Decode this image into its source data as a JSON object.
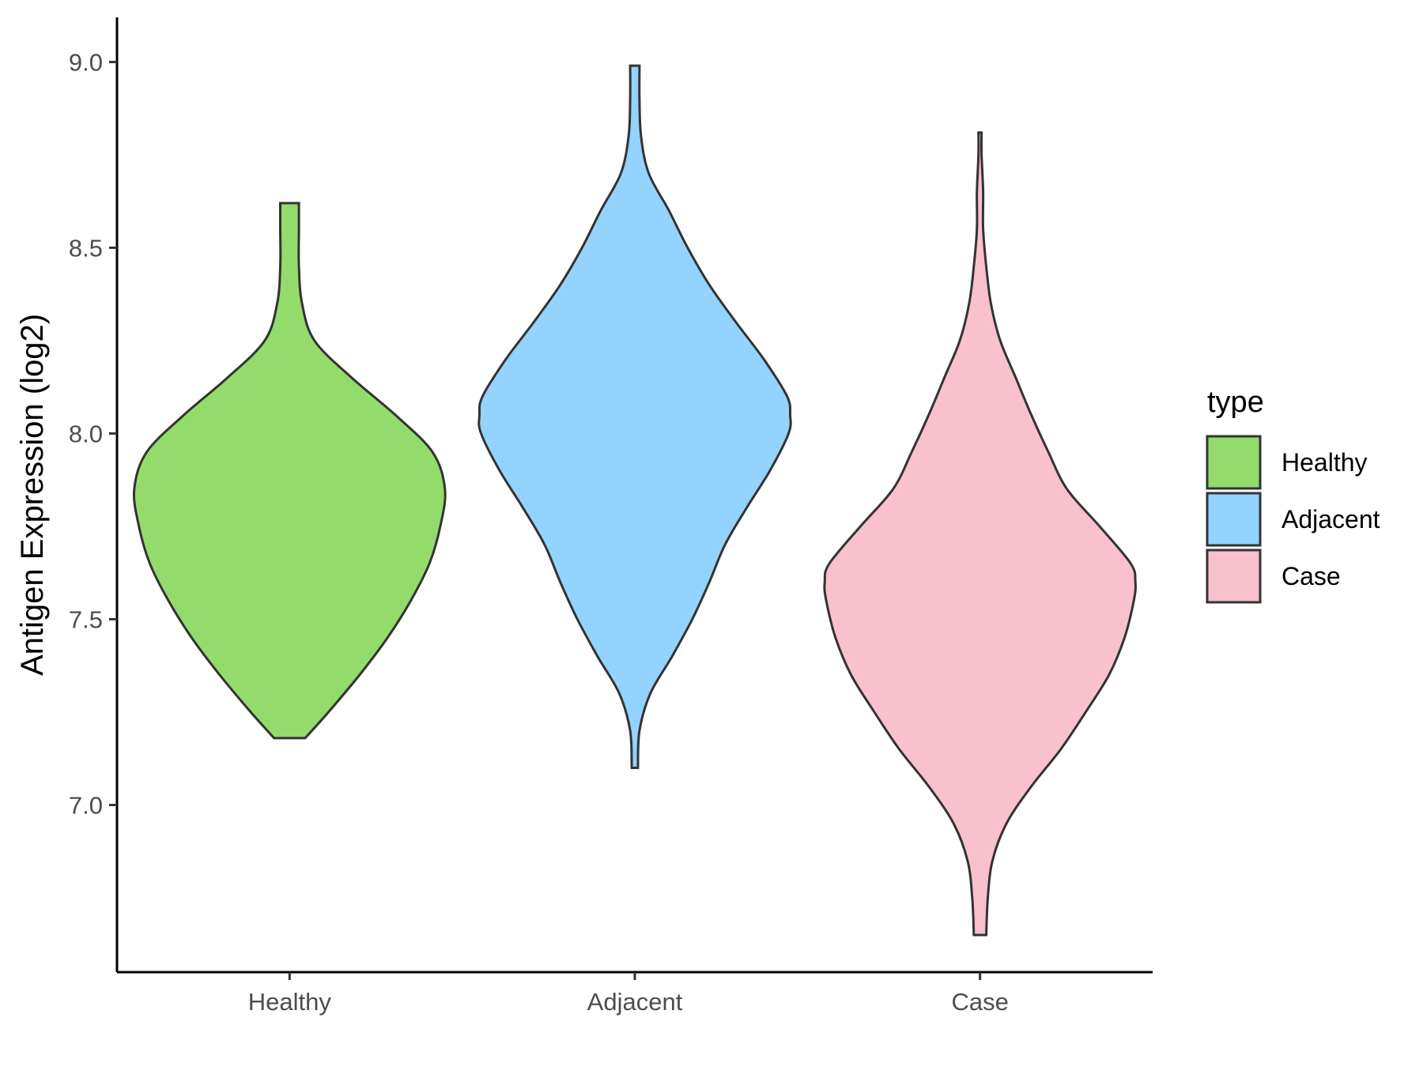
{
  "chart_data": {
    "type": "violin",
    "title": "",
    "xlabel": "",
    "ylabel": "Antigen Expression (log2)",
    "ylim": [
      6.55,
      9.12
    ],
    "yticks": [
      7.0,
      7.5,
      8.0,
      8.5,
      9.0
    ],
    "ytick_labels": [
      "7.0",
      "7.5",
      "8.0",
      "8.5",
      "9.0"
    ],
    "categories": [
      "Healthy",
      "Adjacent",
      "Case"
    ],
    "grid": false,
    "legend": {
      "title": "type",
      "placement": "right",
      "entries": [
        "Healthy",
        "Adjacent",
        "Case"
      ]
    },
    "series": [
      {
        "category": "Healthy",
        "color": "#93dc6b",
        "min": 7.18,
        "max": 8.62,
        "density": [
          [
            7.18,
            0.1
          ],
          [
            7.25,
            0.25
          ],
          [
            7.35,
            0.45
          ],
          [
            7.45,
            0.63
          ],
          [
            7.55,
            0.78
          ],
          [
            7.65,
            0.9
          ],
          [
            7.75,
            0.97
          ],
          [
            7.85,
            1.0
          ],
          [
            7.95,
            0.92
          ],
          [
            8.05,
            0.68
          ],
          [
            8.15,
            0.4
          ],
          [
            8.25,
            0.16
          ],
          [
            8.35,
            0.08
          ],
          [
            8.45,
            0.06
          ],
          [
            8.55,
            0.06
          ],
          [
            8.62,
            0.06
          ]
        ]
      },
      {
        "category": "Adjacent",
        "color": "#93d3fe",
        "min": 7.1,
        "max": 8.99,
        "density": [
          [
            7.1,
            0.02
          ],
          [
            7.2,
            0.03
          ],
          [
            7.3,
            0.1
          ],
          [
            7.4,
            0.24
          ],
          [
            7.5,
            0.37
          ],
          [
            7.6,
            0.48
          ],
          [
            7.7,
            0.58
          ],
          [
            7.8,
            0.72
          ],
          [
            7.9,
            0.87
          ],
          [
            8.0,
            0.99
          ],
          [
            8.05,
            1.0
          ],
          [
            8.1,
            0.98
          ],
          [
            8.2,
            0.83
          ],
          [
            8.3,
            0.65
          ],
          [
            8.4,
            0.48
          ],
          [
            8.5,
            0.34
          ],
          [
            8.6,
            0.22
          ],
          [
            8.7,
            0.09
          ],
          [
            8.8,
            0.04
          ],
          [
            8.9,
            0.03
          ],
          [
            8.99,
            0.03
          ]
        ]
      },
      {
        "category": "Case",
        "color": "#f8c1cd",
        "min": 6.65,
        "max": 8.81,
        "density": [
          [
            6.65,
            0.04
          ],
          [
            6.75,
            0.05
          ],
          [
            6.85,
            0.08
          ],
          [
            6.95,
            0.17
          ],
          [
            7.05,
            0.33
          ],
          [
            7.15,
            0.52
          ],
          [
            7.25,
            0.68
          ],
          [
            7.35,
            0.83
          ],
          [
            7.45,
            0.93
          ],
          [
            7.55,
            0.99
          ],
          [
            7.6,
            1.0
          ],
          [
            7.65,
            0.97
          ],
          [
            7.75,
            0.77
          ],
          [
            7.85,
            0.56
          ],
          [
            7.95,
            0.44
          ],
          [
            8.05,
            0.33
          ],
          [
            8.15,
            0.23
          ],
          [
            8.25,
            0.13
          ],
          [
            8.35,
            0.07
          ],
          [
            8.45,
            0.04
          ],
          [
            8.55,
            0.02
          ],
          [
            8.65,
            0.02
          ],
          [
            8.75,
            0.01
          ],
          [
            8.81,
            0.01
          ]
        ]
      }
    ]
  }
}
